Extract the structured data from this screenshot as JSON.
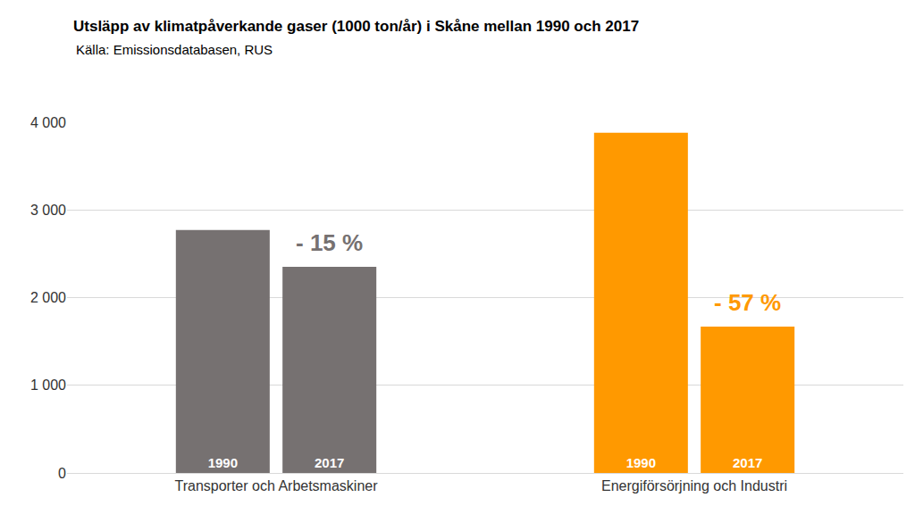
{
  "chart_data": {
    "type": "bar",
    "title": "Utsläpp av klimatpåverkande gaser (1000 ton/år) i Skåne mellan 1990 och 2017",
    "subtitle": "Källa: Emissionsdatabasen, RUS",
    "categories": [
      "Transporter och Arbetsmaskiner",
      "Energiförsörjning och Industri"
    ],
    "series": [
      {
        "name": "1990",
        "values": [
          2770,
          3880
        ]
      },
      {
        "name": "2017",
        "values": [
          2350,
          1670
        ]
      }
    ],
    "colors": [
      "#767171",
      "#ff9900"
    ],
    "ylim": [
      0,
      4000
    ],
    "yticks": [
      0,
      {
        "value": 1000,
        "label": "1 000"
      },
      {
        "value": 2000,
        "label": "2 000"
      },
      {
        "value": 3000,
        "label": "3 000"
      },
      {
        "value": 4000,
        "label": "4 000"
      }
    ],
    "grid": true,
    "annotations": [
      {
        "text": "- 15 %",
        "category": "Transporter och Arbetsmaskiner",
        "series": "2017"
      },
      {
        "text": "- 57 %",
        "category": "Energiförsörjning och Industri",
        "series": "2017"
      }
    ]
  }
}
